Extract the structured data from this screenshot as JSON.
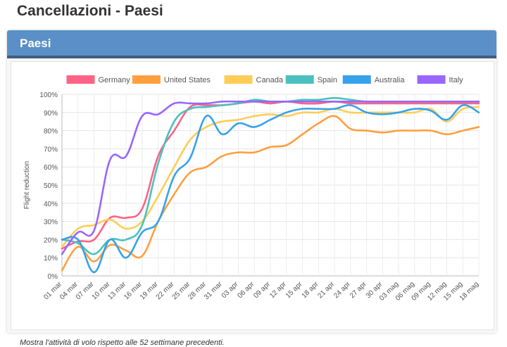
{
  "page": {
    "title": "Cancellazioni - Paesi"
  },
  "card": {
    "title": "Paesi",
    "footnote": "Mostra l'attività di volo rispetto alle 52 settimane precedenti."
  },
  "chart_data": {
    "type": "line",
    "title": "",
    "xlabel": "",
    "ylabel": "Flight reduction",
    "ylim": [
      0,
      100
    ],
    "yticks": [
      "0%",
      "10%",
      "20%",
      "30%",
      "40%",
      "50%",
      "60%",
      "70%",
      "80%",
      "90%",
      "100%"
    ],
    "categories": [
      "01 mar",
      "04 mar",
      "07 mar",
      "10 mar",
      "13 mar",
      "16 mar",
      "19 mar",
      "22 mar",
      "25 mar",
      "28 mar",
      "31 mar",
      "03 apr",
      "06 apr",
      "09 apr",
      "12 apr",
      "15 apr",
      "18 apr",
      "21 apr",
      "24 apr",
      "27 apr",
      "30 apr",
      "03 mag",
      "06 mag",
      "09 mag",
      "12 mag",
      "15 mag",
      "18 mag"
    ],
    "grid": true,
    "legend_position": "top",
    "series": [
      {
        "name": "Germany",
        "color": "#ff6384",
        "values": [
          15,
          19,
          20,
          32,
          32,
          37,
          66,
          80,
          93,
          94,
          94,
          95,
          96,
          95,
          96,
          95,
          95,
          96,
          95,
          95,
          95,
          95,
          95,
          95,
          95,
          95,
          95
        ]
      },
      {
        "name": "United States",
        "color": "#ff9f40",
        "values": [
          3,
          16,
          8,
          17,
          14,
          11,
          30,
          45,
          57,
          60,
          66,
          68,
          68,
          71,
          72,
          78,
          84,
          88,
          81,
          80,
          79,
          80,
          80,
          80,
          78,
          80,
          82
        ]
      },
      {
        "name": "Canada",
        "color": "#ffcd56",
        "values": [
          16,
          26,
          28,
          31,
          26,
          30,
          44,
          60,
          75,
          82,
          85,
          86,
          88,
          89,
          88,
          90,
          90,
          92,
          90,
          90,
          90,
          90,
          90,
          92,
          85,
          92,
          93
        ]
      },
      {
        "name": "Spain",
        "color": "#4bc0c0",
        "values": [
          20,
          18,
          12,
          20,
          20,
          28,
          62,
          85,
          92,
          93,
          94,
          95,
          97,
          96,
          96,
          97,
          97,
          98,
          97,
          96,
          96,
          96,
          96,
          96,
          96,
          96,
          96
        ]
      },
      {
        "name": "Australia",
        "color": "#36a2eb",
        "values": [
          20,
          20,
          2,
          20,
          10,
          24,
          30,
          55,
          65,
          88,
          78,
          84,
          82,
          86,
          90,
          92,
          92,
          92,
          94,
          90,
          89,
          90,
          92,
          91,
          86,
          94,
          90
        ]
      },
      {
        "name": "Italy",
        "color": "#9966ff",
        "values": [
          12,
          24,
          25,
          64,
          66,
          88,
          89,
          95,
          95,
          95,
          96,
          96,
          96,
          96,
          96,
          96,
          96,
          96,
          96,
          96,
          96,
          96,
          96,
          96,
          96,
          96,
          96
        ]
      }
    ]
  }
}
